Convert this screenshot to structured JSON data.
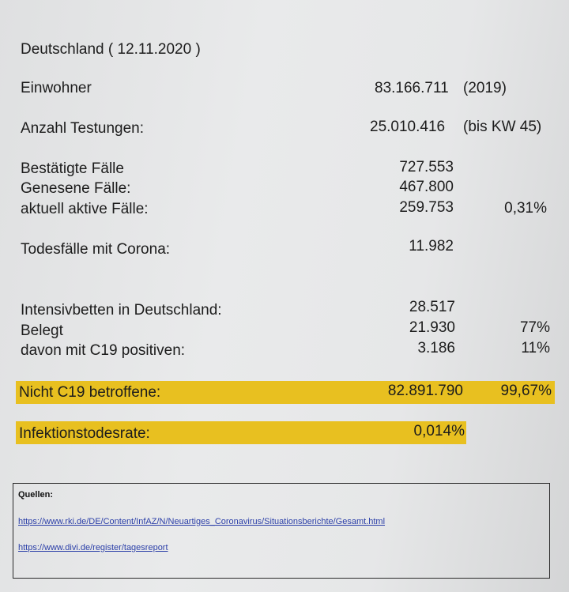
{
  "header": {
    "title": "Deutschland ( 12.11.2020 )"
  },
  "rows": [
    {
      "label": "Einwohner",
      "value": "83.166.711",
      "extra": "(2019)"
    },
    {
      "label": "Anzahl Testungen:",
      "value": "25.010.416",
      "extra": "(bis KW 45)"
    },
    {
      "label": "Bestätigte Fälle",
      "value": "727.553",
      "extra": ""
    },
    {
      "label": "Genesene Fälle:",
      "value": "467.800",
      "extra": ""
    },
    {
      "label": "aktuell aktive Fälle:",
      "value": "259.753",
      "extra": "0,31%"
    },
    {
      "label": "Todesfälle mit Corona:",
      "value": "11.982",
      "extra": ""
    },
    {
      "label": "Intensivbetten in Deutschland:",
      "value": "28.517",
      "extra": ""
    },
    {
      "label": "Belegt",
      "value": "21.930",
      "extra": "77%"
    },
    {
      "label": "davon mit C19 positiven:",
      "value": "3.186",
      "extra": "11%"
    },
    {
      "label": "Nicht C19 betroffene:",
      "value": "82.891.790",
      "extra": "99,67%"
    },
    {
      "label": "Infektionstodesrate:",
      "value": "0,014%",
      "extra": ""
    }
  ],
  "sources": {
    "title": "Quellen:",
    "links": [
      "https://www.rki.de/DE/Content/InfAZ/N/Neuartiges_Coronavirus/Situationsberichte/Gesamt.html",
      "https://www.divi.de/register/tagesreport"
    ]
  },
  "colors": {
    "highlight": "#e8c020",
    "link": "#2b3fa8"
  }
}
